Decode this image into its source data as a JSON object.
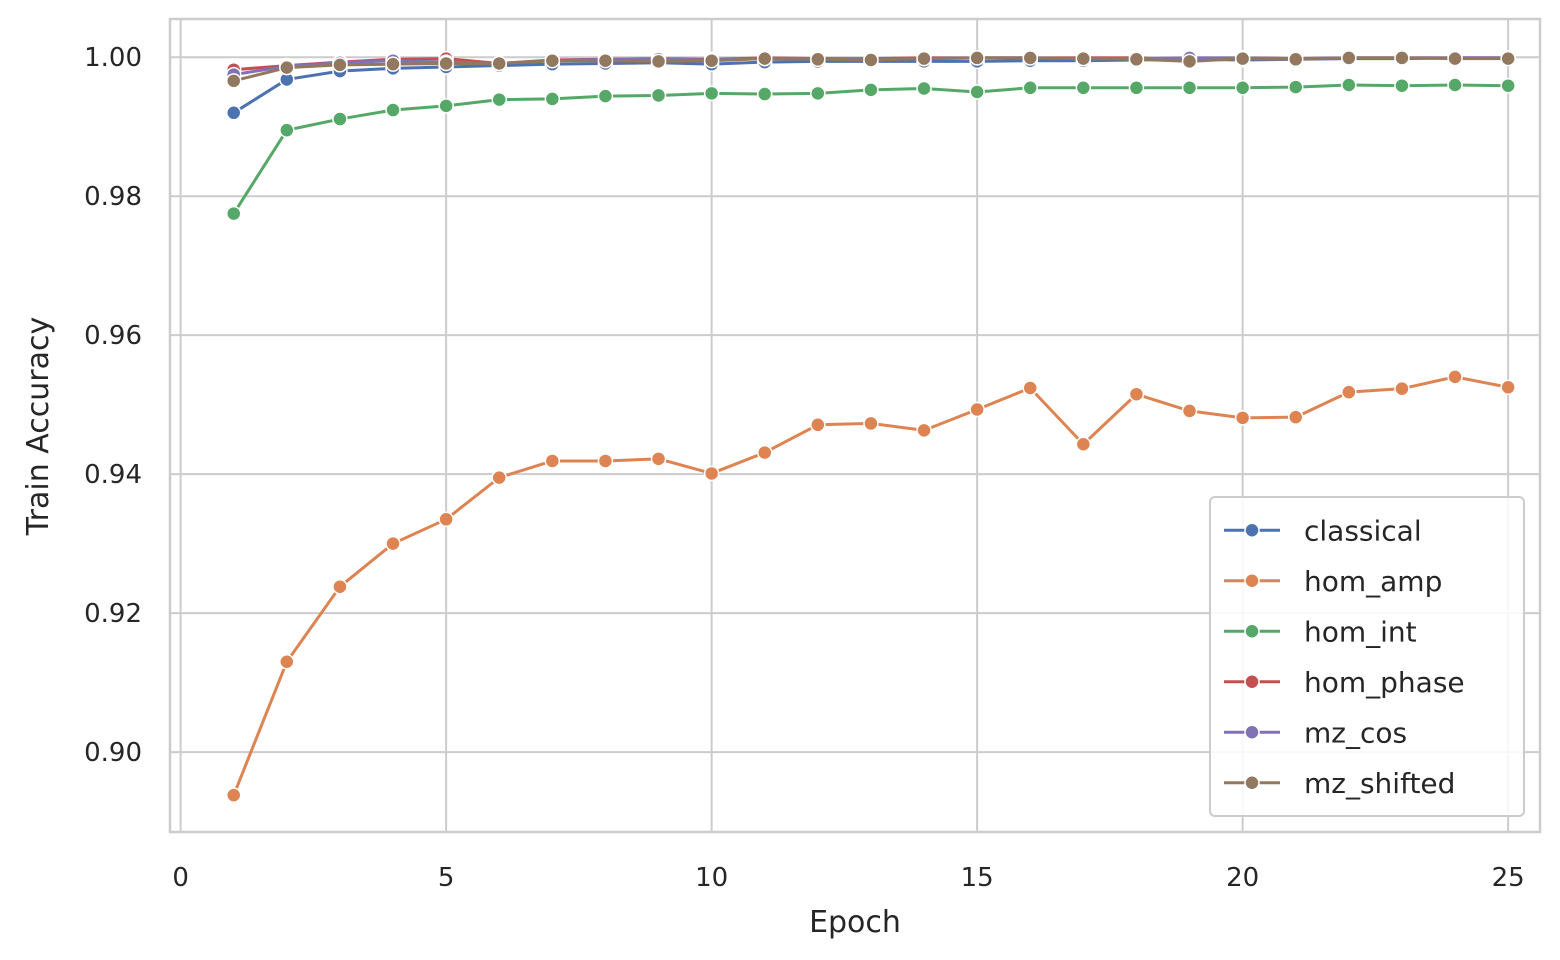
{
  "chart_data": {
    "type": "line",
    "title": "",
    "xlabel": "Epoch",
    "ylabel": "Train Accuracy",
    "xlim": [
      -0.2,
      25.6
    ],
    "ylim": [
      0.8885,
      1.0055
    ],
    "xticks": [
      0,
      5,
      10,
      15,
      20,
      25
    ],
    "yticks": [
      0.9,
      0.92,
      0.94,
      0.96,
      0.98,
      1.0
    ],
    "ytick_labels": [
      "0.90",
      "0.92",
      "0.94",
      "0.96",
      "0.98",
      "1.00"
    ],
    "grid": true,
    "legend_position": "bottom-right",
    "marker": "circle",
    "x": [
      1,
      2,
      3,
      4,
      5,
      6,
      7,
      8,
      9,
      10,
      11,
      12,
      13,
      14,
      15,
      16,
      17,
      18,
      19,
      20,
      21,
      22,
      23,
      24,
      25
    ],
    "series": [
      {
        "name": "classical",
        "color": "#4c72b0",
        "values": [
          0.992,
          0.9968,
          0.998,
          0.9984,
          0.9986,
          0.9988,
          0.999,
          0.9991,
          0.9992,
          0.999,
          0.9993,
          0.9994,
          0.9994,
          0.9994,
          0.9994,
          0.9995,
          0.9995,
          0.9996,
          0.9997,
          0.9996,
          0.9997,
          0.9998,
          0.9998,
          0.9999,
          0.9999
        ]
      },
      {
        "name": "hom_amp",
        "color": "#dd8452",
        "values": [
          0.8938,
          0.913,
          0.9238,
          0.93,
          0.9335,
          0.9395,
          0.9419,
          0.9419,
          0.9422,
          0.9401,
          0.9431,
          0.9471,
          0.9473,
          0.9463,
          0.9493,
          0.9524,
          0.9443,
          0.9515,
          0.9491,
          0.9481,
          0.9482,
          0.9518,
          0.9523,
          0.954,
          0.9525
        ]
      },
      {
        "name": "hom_int",
        "color": "#55a868",
        "values": [
          0.9775,
          0.9895,
          0.9911,
          0.9924,
          0.993,
          0.9939,
          0.994,
          0.9944,
          0.9945,
          0.9948,
          0.9947,
          0.9948,
          0.9953,
          0.9955,
          0.995,
          0.9956,
          0.9956,
          0.9956,
          0.9956,
          0.9956,
          0.9957,
          0.996,
          0.9959,
          0.996,
          0.9959
        ]
      },
      {
        "name": "hom_phase",
        "color": "#c44e52",
        "values": [
          0.9982,
          0.9988,
          0.9993,
          0.9997,
          0.9998,
          0.9991,
          0.9996,
          0.9997,
          0.9998,
          0.9997,
          0.9999,
          0.9998,
          0.9998,
          0.9999,
          0.9999,
          0.9999,
          0.9999,
          0.9999,
          0.9996,
          0.9999,
          0.9998,
          0.9999,
          0.9999,
          0.9999,
          0.9999
        ]
      },
      {
        "name": "mz_cos",
        "color": "#8172b3",
        "values": [
          0.9975,
          0.9987,
          0.9992,
          0.9995,
          0.9993,
          0.9991,
          0.9995,
          0.9997,
          0.9997,
          0.9996,
          0.9998,
          0.9998,
          0.9997,
          0.9998,
          0.9999,
          0.9999,
          0.9998,
          0.9998,
          0.9999,
          0.9999,
          0.9998,
          0.9999,
          0.9999,
          0.9999,
          0.9999
        ]
      },
      {
        "name": "mz_shifted",
        "color": "#937860",
        "values": [
          0.9966,
          0.9985,
          0.9989,
          0.999,
          0.9991,
          0.9991,
          0.9995,
          0.9995,
          0.9994,
          0.9995,
          0.9998,
          0.9997,
          0.9996,
          0.9998,
          0.9999,
          0.9999,
          0.9998,
          0.9997,
          0.9994,
          0.9998,
          0.9997,
          0.9999,
          0.9999,
          0.9998,
          0.9998
        ]
      }
    ]
  }
}
